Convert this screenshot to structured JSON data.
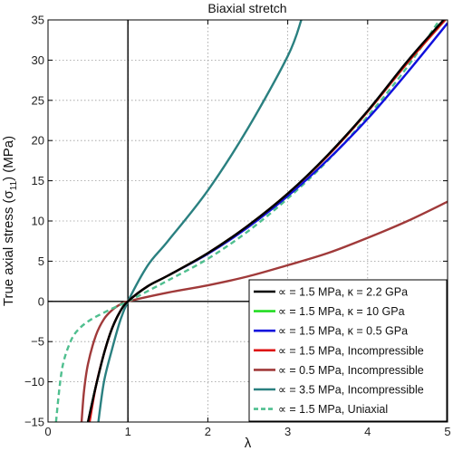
{
  "chart_data": {
    "type": "line",
    "title": "Biaxial stretch",
    "xlabel": "λ",
    "ylabel": "True axial stress (σ",
    "ylabel_sub": "11",
    "ylabel_tail": ") (MPa)",
    "xlim": [
      0,
      5
    ],
    "ylim": [
      -15,
      35
    ],
    "xticks": [
      0,
      1,
      2,
      3,
      4,
      5
    ],
    "yticks": [
      -15,
      -10,
      -5,
      0,
      5,
      10,
      15,
      20,
      25,
      30,
      35
    ],
    "grid": true,
    "legend_position": "bottom-right",
    "reference_lines": {
      "x": 1,
      "y": 0
    },
    "series": [
      {
        "name": "∝ = 1.5 MPa, κ = 2.2 GPa",
        "color": "#000000",
        "dash": "solid",
        "x": [
          0.5,
          0.6,
          0.7,
          0.8,
          0.9,
          1.0,
          1.25,
          1.5,
          2.0,
          2.5,
          3.0,
          3.5,
          4.0,
          4.5,
          4.95
        ],
        "y": [
          -15,
          -10.5,
          -6.5,
          -3.4,
          -1.3,
          0,
          1.9,
          3.2,
          6.0,
          9.4,
          13.4,
          18.2,
          23.7,
          29.9,
          35
        ]
      },
      {
        "name": "∝ = 1.5 MPa, κ = 10 GPa",
        "color": "#22dd22",
        "dash": "solid",
        "x": [
          0.5,
          0.6,
          0.7,
          0.8,
          0.9,
          1.0,
          1.25,
          1.5,
          2.0,
          2.5,
          3.0,
          3.5,
          4.0,
          4.5,
          4.97
        ],
        "y": [
          -15,
          -10.5,
          -6.5,
          -3.4,
          -1.3,
          0,
          1.9,
          3.2,
          6.0,
          9.4,
          13.4,
          18.1,
          23.6,
          29.7,
          35
        ]
      },
      {
        "name": "∝ = 1.5 MPa, κ = 0.5 GPa",
        "color": "#1010dd",
        "dash": "solid",
        "x": [
          0.5,
          0.6,
          0.7,
          0.8,
          0.9,
          1.0,
          1.25,
          1.5,
          2.0,
          2.5,
          3.0,
          3.5,
          4.0,
          4.5,
          5.0
        ],
        "y": [
          -15,
          -10.5,
          -6.5,
          -3.4,
          -1.3,
          0,
          1.9,
          3.2,
          5.9,
          9.2,
          13.1,
          17.6,
          22.7,
          28.5,
          34.6
        ]
      },
      {
        "name": "∝ = 1.5 MPa, Incompressible",
        "color": "#dd1111",
        "dash": "solid",
        "x": [
          0.52,
          0.6,
          0.7,
          0.8,
          0.9,
          1.0,
          1.25,
          1.5,
          2.0,
          2.5,
          3.0,
          3.5,
          4.0,
          4.5,
          4.97
        ],
        "y": [
          -15,
          -10.5,
          -6.5,
          -3.4,
          -1.3,
          0,
          1.9,
          3.2,
          6.0,
          9.4,
          13.4,
          18.1,
          23.6,
          29.7,
          35
        ]
      },
      {
        "name": "∝ = 0.5 MPa, Incompressible",
        "color": "#a03a3a",
        "dash": "solid",
        "x": [
          0.42,
          0.45,
          0.5,
          0.6,
          0.7,
          0.8,
          0.9,
          1.0,
          1.5,
          2.0,
          2.5,
          3.0,
          3.5,
          4.0,
          4.5,
          5.0
        ],
        "y": [
          -15,
          -11.2,
          -7.8,
          -4.2,
          -2.2,
          -1.1,
          -0.4,
          0,
          1.1,
          2.0,
          3.1,
          4.5,
          6.0,
          7.9,
          10.0,
          12.4
        ]
      },
      {
        "name": "∝ = 3.5 MPa, Incompressible",
        "color": "#2a8080",
        "dash": "solid",
        "x": [
          0.63,
          0.7,
          0.8,
          0.9,
          1.0,
          1.25,
          1.5,
          2.0,
          2.5,
          3.0,
          3.17
        ],
        "y": [
          -15,
          -10,
          -6,
          -2.5,
          0,
          4.5,
          7.5,
          13.8,
          21.5,
          30.5,
          35
        ]
      },
      {
        "name": "∝ = 1.5 MPa, Uniaxial",
        "color": "#4fbf8f",
        "dash": "dashed",
        "x": [
          0.1,
          0.15,
          0.2,
          0.3,
          0.4,
          0.5,
          0.6,
          0.7,
          0.8,
          0.9,
          1.0,
          1.5,
          2.0,
          2.5,
          3.0,
          3.5,
          4.0,
          4.5,
          4.9
        ],
        "y": [
          -15,
          -10.2,
          -7.3,
          -4.6,
          -3.3,
          -2.5,
          -1.9,
          -1.4,
          -0.9,
          -0.45,
          0,
          2.6,
          5.3,
          8.7,
          12.8,
          17.5,
          23.0,
          29.2,
          35
        ]
      }
    ]
  }
}
